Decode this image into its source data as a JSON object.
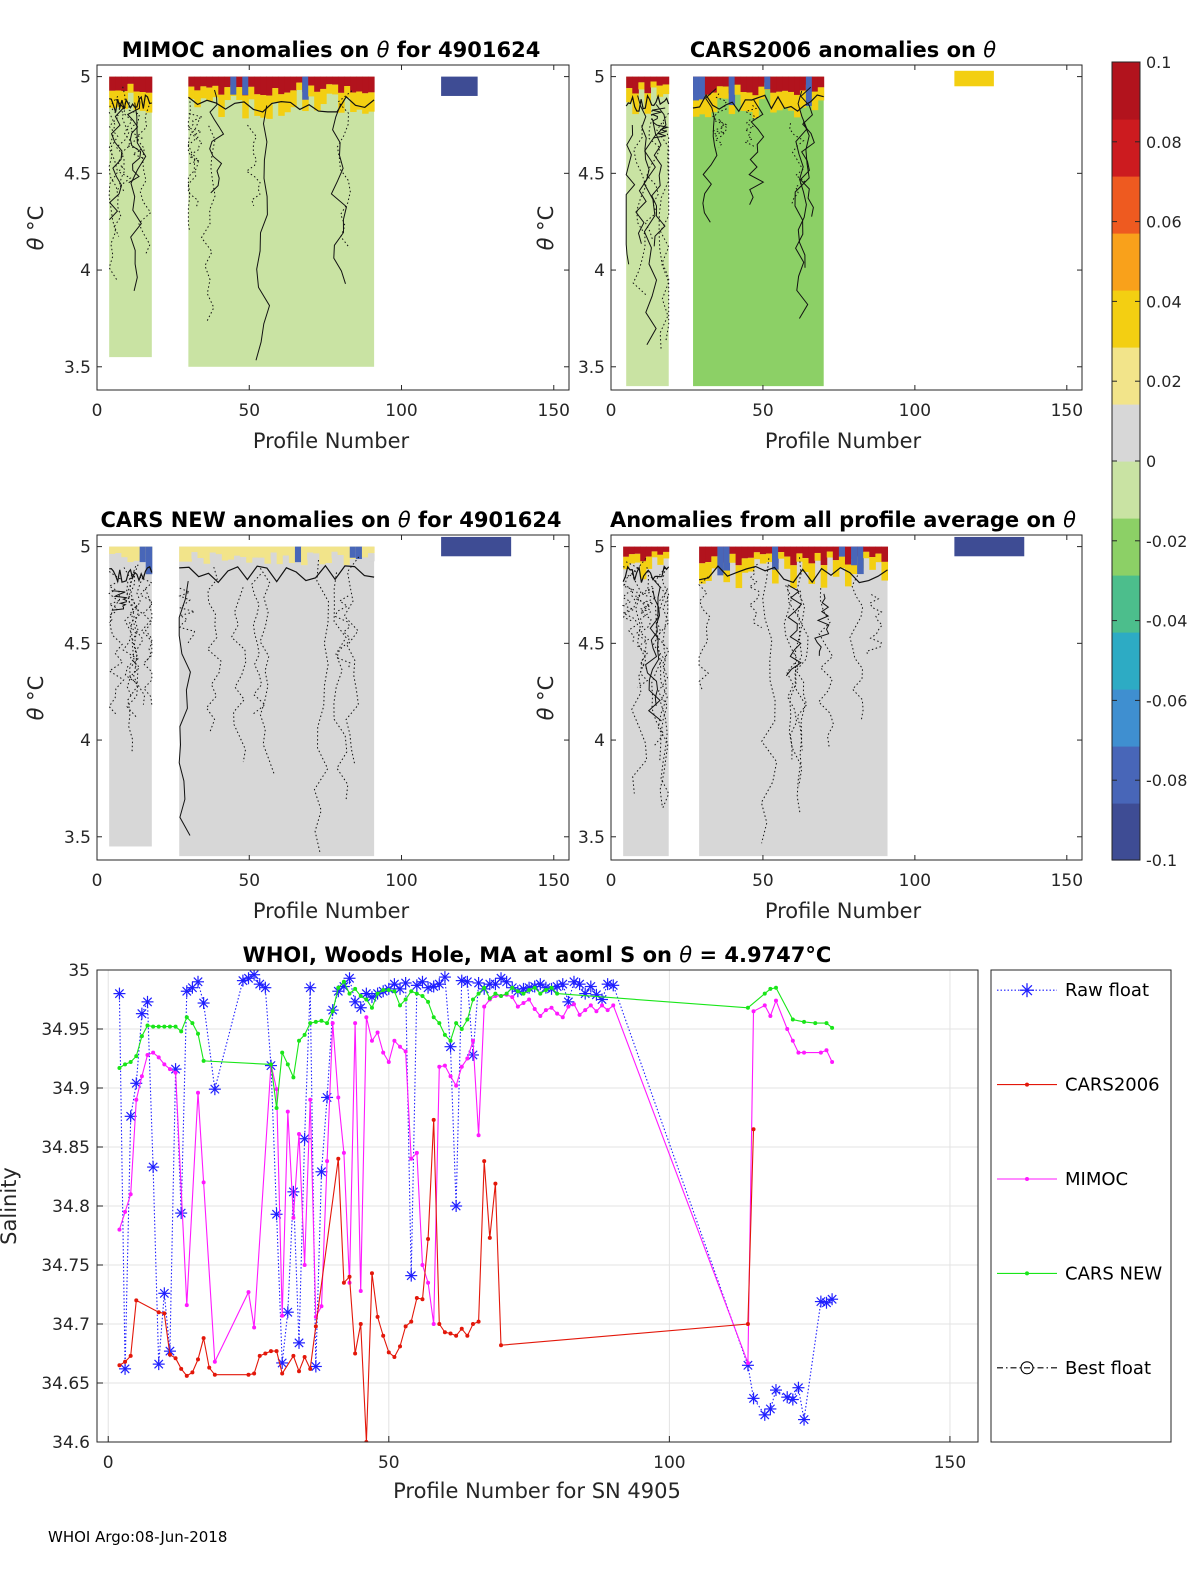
{
  "figure_footer": "WHOI Argo:08-Jun-2018",
  "chart_data": [
    {
      "type": "heatmap",
      "id": "mimoc",
      "title_prefix": "MIMOC anomalies on ",
      "title_symbol": "θ",
      "title_suffix": "  for 4901624",
      "xlabel": "Profile Number",
      "ylabel_symbol": "θ",
      "ylabel_unit": "°C",
      "xlim": [
        0,
        155
      ],
      "ylim": [
        3.38,
        5.06
      ],
      "xticks": [
        0,
        50,
        100,
        150
      ],
      "yticks": [
        3.5,
        4,
        4.5,
        5
      ],
      "ytick_labels": [
        "3.5",
        "4",
        "4.5",
        "5"
      ],
      "xtick_labels": [
        "0",
        "50",
        "100",
        "150"
      ],
      "blocks": [
        {
          "x": [
            4,
            18
          ],
          "y_top": 5.0,
          "y_bottom": 3.55,
          "anomaly": -0.005
        },
        {
          "x": [
            30,
            91
          ],
          "y_top": 5.0,
          "y_bottom": 3.5,
          "anomaly": -0.008
        }
      ],
      "surface_anomaly": 0.1,
      "far_cells": {
        "x": [
          113,
          125
        ],
        "y": [
          4.9,
          5.0
        ],
        "anomaly": -0.09
      }
    },
    {
      "type": "heatmap",
      "id": "cars2006",
      "title_prefix": "CARS2006 anomalies on ",
      "title_symbol": "θ",
      "title_suffix": "",
      "xlabel": "Profile Number",
      "ylabel_symbol": "θ",
      "ylabel_unit": "°C",
      "xlim": [
        0,
        155
      ],
      "ylim": [
        3.38,
        5.06
      ],
      "xticks": [
        0,
        50,
        100,
        150
      ],
      "yticks": [
        3.5,
        4,
        4.5,
        5
      ],
      "ytick_labels": [
        "3.5",
        "4",
        "4.5",
        "5"
      ],
      "xtick_labels": [
        "0",
        "50",
        "100",
        "150"
      ],
      "blocks": [
        {
          "x": [
            5,
            19
          ],
          "y_top": 5.0,
          "y_bottom": 3.4,
          "anomaly": -0.012
        },
        {
          "x": [
            27,
            70
          ],
          "y_top": 5.0,
          "y_bottom": 3.4,
          "anomaly": -0.015
        }
      ],
      "surface_anomaly": 0.1,
      "far_cells": {
        "x": [
          113,
          126
        ],
        "y": [
          4.95,
          5.03
        ],
        "anomaly": 0.03
      }
    },
    {
      "type": "heatmap",
      "id": "cars_new",
      "title_prefix": "CARS NEW anomalies on ",
      "title_symbol": "θ",
      "title_suffix": " for 4901624",
      "xlabel": "Profile Number",
      "ylabel_symbol": "θ",
      "ylabel_unit": "°C",
      "xlim": [
        0,
        155
      ],
      "ylim": [
        3.38,
        5.06
      ],
      "xticks": [
        0,
        50,
        100,
        150
      ],
      "yticks": [
        3.5,
        4,
        4.5,
        5
      ],
      "ytick_labels": [
        "3.5",
        "4",
        "4.5",
        "5"
      ],
      "xtick_labels": [
        "0",
        "50",
        "100",
        "150"
      ],
      "blocks": [
        {
          "x": [
            4,
            18
          ],
          "y_top": 5.0,
          "y_bottom": 3.45,
          "anomaly": 0.0
        },
        {
          "x": [
            27,
            91
          ],
          "y_top": 5.0,
          "y_bottom": 3.4,
          "anomaly": 0.0
        }
      ],
      "surface_anomaly": 0.02,
      "far_cells": {
        "x": [
          113,
          136
        ],
        "y": [
          4.95,
          5.05
        ],
        "anomaly": -0.09
      }
    },
    {
      "type": "heatmap",
      "id": "profile_average",
      "title_prefix": "Anomalies from all profile average on ",
      "title_symbol": "θ",
      "title_suffix": "",
      "xlabel": "Profile Number",
      "ylabel_symbol": "θ",
      "ylabel_unit": "°C",
      "xlim": [
        0,
        155
      ],
      "ylim": [
        3.38,
        5.06
      ],
      "xticks": [
        0,
        50,
        100,
        150
      ],
      "yticks": [
        3.5,
        4,
        4.5,
        5
      ],
      "ytick_labels": [
        "3.5",
        "4",
        "4.5",
        "5"
      ],
      "xtick_labels": [
        "0",
        "50",
        "100",
        "150"
      ],
      "blocks": [
        {
          "x": [
            4,
            19
          ],
          "y_top": 5.0,
          "y_bottom": 3.4,
          "anomaly": 0.0
        },
        {
          "x": [
            29,
            91
          ],
          "y_top": 5.0,
          "y_bottom": 3.4,
          "anomaly": 0.0
        }
      ],
      "surface_anomaly": 0.1,
      "far_cells": {
        "x": [
          113,
          136
        ],
        "y": [
          4.95,
          5.05
        ],
        "anomaly": -0.09
      }
    },
    {
      "type": "colorbar",
      "id": "anomaly_colorbar",
      "range": [
        -0.1,
        0.1
      ],
      "ticks": [
        0.1,
        0.08,
        0.06,
        0.04,
        0.02,
        0,
        -0.02,
        -0.04,
        -0.06,
        -0.08,
        -0.1
      ],
      "tick_labels": [
        "0.1",
        "0.08",
        "0.06",
        "0.04",
        "0.02",
        "0",
        "-0.02",
        "-0.04",
        "-0.06",
        "-0.08",
        "-0.1"
      ],
      "colors": [
        "#3e4c94",
        "#4866b8",
        "#3f8fd0",
        "#2dabc4",
        "#4cbe8c",
        "#8cd066",
        "#c9e3a3",
        "#d7d7d7",
        "#f2e48a",
        "#f3cf12",
        "#f9a11b",
        "#ee5a20",
        "#cc1b1f",
        "#b2131d"
      ]
    },
    {
      "type": "line",
      "id": "salinity_timeseries",
      "title_prefix": "WHOI, Woods Hole, MA at aoml S on ",
      "title_symbol": "θ",
      "title_value": " = 4.9747",
      "title_unit": "°C",
      "xlabel": "Profile Number for SN 4905",
      "ylabel": "Salinity",
      "xlim": [
        -2,
        155
      ],
      "ylim": [
        34.6,
        35.0
      ],
      "xticks": [
        0,
        50,
        100,
        150
      ],
      "xtick_labels": [
        "0",
        "50",
        "100",
        "150"
      ],
      "yticks": [
        34.6,
        34.65,
        34.7,
        34.75,
        34.8,
        34.85,
        34.9,
        34.95,
        35
      ],
      "ytick_labels": [
        "34.6",
        "34.65",
        "34.7",
        "34.75",
        "34.8",
        "34.85",
        "34.9",
        "34.95",
        "35"
      ],
      "grid": true,
      "legend_position": "right",
      "series": [
        {
          "name": "Raw float",
          "color": "#1f1fff",
          "style": "dotted",
          "marker": "asterisk",
          "x": [
            2,
            3,
            4,
            5,
            6,
            7,
            8,
            9,
            10,
            11,
            12,
            13,
            14,
            15,
            16,
            17,
            19,
            24,
            25,
            26,
            27,
            28,
            29,
            30,
            31,
            32,
            33,
            34,
            35,
            36,
            37,
            38,
            39,
            40,
            41,
            42,
            43,
            44,
            45,
            46,
            47,
            48,
            49,
            50,
            51,
            52,
            53,
            54,
            55,
            56,
            57,
            58,
            59,
            60,
            61,
            62,
            63,
            64,
            65,
            66,
            67,
            68,
            69,
            70,
            71,
            72,
            73,
            74,
            75,
            76,
            77,
            78,
            79,
            80,
            81,
            82,
            83,
            84,
            85,
            86,
            87,
            88,
            89,
            90,
            114,
            115,
            117,
            118,
            119,
            121,
            122,
            123,
            124,
            127,
            128,
            129
          ],
          "y": [
            34.98,
            34.662,
            34.876,
            34.904,
            34.963,
            34.973,
            34.833,
            34.666,
            34.726,
            34.677,
            34.916,
            34.794,
            34.982,
            34.985,
            34.99,
            34.972,
            34.899,
            34.991,
            34.993,
            34.996,
            34.988,
            34.985,
            34.919,
            34.793,
            34.667,
            34.71,
            34.812,
            34.684,
            34.857,
            34.985,
            34.664,
            34.829,
            34.892,
            34.966,
            34.982,
            34.986,
            34.993,
            34.973,
            34.968,
            34.98,
            34.977,
            34.98,
            34.982,
            34.984,
            34.988,
            34.984,
            34.989,
            34.741,
            34.987,
            34.99,
            34.985,
            34.986,
            34.988,
            34.994,
            34.935,
            34.8,
            34.991,
            34.99,
            34.928,
            34.989,
            34.984,
            34.988,
            34.988,
            34.993,
            34.99,
            34.985,
            34.982,
            34.984,
            34.985,
            34.986,
            34.988,
            34.985,
            34.984,
            34.986,
            34.988,
            34.973,
            34.99,
            34.988,
            34.98,
            34.986,
            34.979,
            34.975,
            34.988,
            34.987,
            34.665,
            34.637,
            34.623,
            34.628,
            34.644,
            34.638,
            34.636,
            34.646,
            34.619,
            34.719,
            34.718,
            34.721
          ]
        },
        {
          "name": "CARS2006",
          "color": "#e3170a",
          "style": "solid",
          "marker": "dot",
          "x": [
            2,
            3,
            4,
            5,
            9,
            10,
            11,
            12,
            13,
            14,
            15,
            16,
            17,
            18,
            19,
            25,
            26,
            27,
            28,
            29,
            30,
            31,
            33,
            34,
            35,
            36,
            37,
            41,
            42,
            43,
            44,
            45,
            46,
            47,
            48,
            49,
            50,
            51,
            52,
            53,
            54,
            55,
            56,
            57,
            58,
            59,
            60,
            61,
            62,
            63,
            64,
            65,
            66,
            67,
            68,
            69,
            70,
            114,
            115
          ],
          "y": [
            34.665,
            34.668,
            34.673,
            34.72,
            34.71,
            34.709,
            34.674,
            34.671,
            34.662,
            34.656,
            34.659,
            34.67,
            34.688,
            34.663,
            34.657,
            34.657,
            34.658,
            34.673,
            34.675,
            34.677,
            34.677,
            34.658,
            34.673,
            34.66,
            34.672,
            34.662,
            34.698,
            34.84,
            34.735,
            34.74,
            34.675,
            34.7,
            34.6,
            34.743,
            34.706,
            34.69,
            34.676,
            34.672,
            34.681,
            34.698,
            34.702,
            34.722,
            34.721,
            34.772,
            34.873,
            34.7,
            34.693,
            34.692,
            34.69,
            34.696,
            34.69,
            34.7,
            34.702,
            34.838,
            34.773,
            34.819,
            34.682,
            34.7,
            34.865
          ]
        },
        {
          "name": "MIMOC",
          "color": "#ff19ff",
          "style": "solid",
          "marker": "dot",
          "x": [
            2,
            3,
            4,
            5,
            6,
            7,
            8,
            9,
            10,
            11,
            12,
            14,
            16,
            17,
            19,
            25,
            26,
            29,
            30,
            31,
            32,
            33,
            34,
            35,
            36,
            37,
            38,
            39,
            40,
            41,
            42,
            43,
            44,
            45,
            46,
            47,
            48,
            49,
            50,
            51,
            52,
            53,
            54,
            55,
            56,
            57,
            58,
            59,
            60,
            61,
            62,
            63,
            64,
            65,
            66,
            67,
            68,
            69,
            70,
            71,
            72,
            73,
            74,
            75,
            76,
            77,
            78,
            79,
            80,
            81,
            82,
            83,
            84,
            85,
            86,
            87,
            88,
            89,
            90,
            114,
            115,
            117,
            118,
            119,
            121,
            122,
            123,
            124,
            127,
            128,
            129
          ],
          "y": [
            34.78,
            34.795,
            34.81,
            34.89,
            34.91,
            34.928,
            34.93,
            34.926,
            34.92,
            34.916,
            34.913,
            34.716,
            34.896,
            34.82,
            34.668,
            34.727,
            34.697,
            34.92,
            34.899,
            34.707,
            34.88,
            34.79,
            34.861,
            34.75,
            34.89,
            34.706,
            34.715,
            34.838,
            34.955,
            34.892,
            34.845,
            34.735,
            34.955,
            34.728,
            34.96,
            34.94,
            34.947,
            34.93,
            34.922,
            34.94,
            34.935,
            34.931,
            34.84,
            34.845,
            34.75,
            34.735,
            34.7,
            34.918,
            34.919,
            34.91,
            34.902,
            34.918,
            34.925,
            34.94,
            34.86,
            34.969,
            34.975,
            34.978,
            34.978,
            34.979,
            34.977,
            34.969,
            34.972,
            34.975,
            34.967,
            34.961,
            34.966,
            34.968,
            34.963,
            34.96,
            34.969,
            34.971,
            34.962,
            34.966,
            34.97,
            34.965,
            34.97,
            34.966,
            34.97,
            34.667,
            34.965,
            34.97,
            34.961,
            34.974,
            34.95,
            34.94,
            34.93,
            34.93,
            34.93,
            34.932,
            34.922
          ]
        },
        {
          "name": "CARS NEW",
          "color": "#19e619",
          "style": "solid",
          "marker": "dot",
          "x": [
            2,
            3,
            4,
            5,
            6,
            7,
            8,
            9,
            10,
            11,
            12,
            13,
            14,
            15,
            16,
            17,
            29,
            30,
            31,
            32,
            33,
            34,
            35,
            36,
            37,
            38,
            39,
            40,
            41,
            42,
            43,
            44,
            45,
            46,
            47,
            48,
            49,
            50,
            51,
            52,
            53,
            54,
            55,
            56,
            57,
            58,
            59,
            60,
            61,
            62,
            63,
            64,
            65,
            66,
            67,
            68,
            69,
            70,
            71,
            72,
            73,
            74,
            75,
            76,
            77,
            78,
            79,
            80,
            114,
            117,
            118,
            119,
            122,
            124,
            126,
            128,
            129
          ],
          "y": [
            34.917,
            34.92,
            34.922,
            34.927,
            34.944,
            34.953,
            34.952,
            34.952,
            34.952,
            34.952,
            34.952,
            34.948,
            34.96,
            34.955,
            34.946,
            34.923,
            34.92,
            34.883,
            34.93,
            34.92,
            34.909,
            34.94,
            34.945,
            34.955,
            34.956,
            34.957,
            34.955,
            34.965,
            34.985,
            34.99,
            34.98,
            34.984,
            34.978,
            34.975,
            34.968,
            34.98,
            34.983,
            34.983,
            34.982,
            34.97,
            34.975,
            34.982,
            34.98,
            34.978,
            34.973,
            34.96,
            34.955,
            34.945,
            34.94,
            34.955,
            34.95,
            34.958,
            34.975,
            34.98,
            34.985,
            34.976,
            34.98,
            34.978,
            34.98,
            34.985,
            34.982,
            34.98,
            34.983,
            34.985,
            34.98,
            34.983,
            34.985,
            34.98,
            34.968,
            34.98,
            34.984,
            34.985,
            34.958,
            34.956,
            34.955,
            34.955,
            34.951
          ]
        },
        {
          "name": "Best float",
          "color": "#000000",
          "style": "dashdot",
          "marker": "circle",
          "x": [],
          "y": []
        }
      ]
    }
  ]
}
